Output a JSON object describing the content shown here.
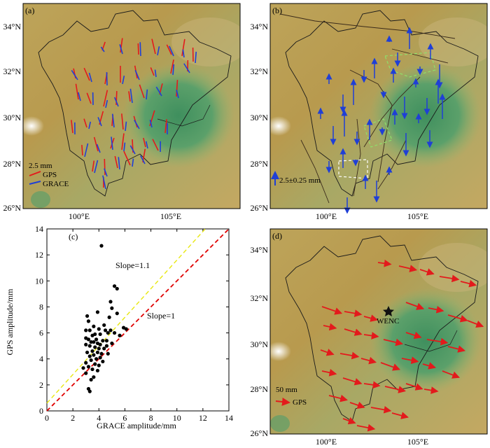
{
  "panels": {
    "a": {
      "label": "(a)",
      "x_ticks": [
        "100°E",
        "105°E"
      ],
      "y_ticks": [
        "34°N",
        "32°N",
        "30°N",
        "28°N",
        "26°N"
      ],
      "legend": {
        "scale": "2.5 mm",
        "gps": "GPS",
        "grace": "GRACE"
      }
    },
    "b": {
      "label": "(b)",
      "x_ticks": [
        "100°E",
        "105°E"
      ],
      "y_ticks": [
        "34°N",
        "32°N",
        "30°N",
        "28°N",
        "26°N"
      ],
      "legend": {
        "scale": "2.5±0.25 mm"
      }
    },
    "c": {
      "label": "(c)",
      "annotations": {
        "slope1": "Slope=1.1",
        "slope2": "Slope=1"
      }
    },
    "d": {
      "label": "(d)",
      "x_ticks": [
        "100°E",
        "105°E"
      ],
      "y_ticks": [
        "34°N",
        "32°N",
        "30°N",
        "28°N",
        "26°N"
      ],
      "station": "WENC",
      "legend": {
        "scale": "50 mm",
        "gps": "GPS"
      }
    }
  },
  "colors": {
    "gps": "#e31a1c",
    "grace": "#1f3fd6",
    "fit_line": "#e8e810",
    "unit_line": "#e00000",
    "border": "#1a1a1a"
  },
  "chart_data": {
    "type": "scatter",
    "title": "",
    "xlabel": "GRACE amplitude/mm",
    "ylabel": "GPS amplitude/mm",
    "xlim": [
      0,
      14
    ],
    "ylim": [
      0,
      14
    ],
    "x_ticks": [
      0,
      2,
      4,
      6,
      8,
      10,
      12,
      14
    ],
    "y_ticks": [
      0,
      2,
      4,
      6,
      8,
      10,
      12,
      14
    ],
    "lines": [
      {
        "name": "Slope=1.1",
        "slope": 1.1,
        "intercept": 0.6,
        "style": "dashed",
        "color": "#e8e810"
      },
      {
        "name": "Slope=1",
        "slope": 1.0,
        "intercept": 0.0,
        "style": "dashed",
        "color": "#e00000"
      }
    ],
    "points": [
      [
        4.2,
        12.7
      ],
      [
        5.2,
        9.6
      ],
      [
        5.4,
        9.4
      ],
      [
        4.9,
        8.4
      ],
      [
        5.0,
        7.9
      ],
      [
        3.1,
        7.3
      ],
      [
        4.8,
        7.2
      ],
      [
        3.9,
        7.6
      ],
      [
        5.4,
        7.5
      ],
      [
        3.2,
        6.9
      ],
      [
        4.4,
        6.6
      ],
      [
        5.9,
        6.4
      ],
      [
        6.1,
        6.3
      ],
      [
        3.6,
        6.5
      ],
      [
        4.0,
        6.3
      ],
      [
        4.5,
        6.2
      ],
      [
        4.9,
        6.2
      ],
      [
        3.0,
        6.2
      ],
      [
        3.3,
        6.2
      ],
      [
        5.2,
        6.0
      ],
      [
        4.7,
        6.0
      ],
      [
        4.1,
        5.9
      ],
      [
        3.7,
        5.9
      ],
      [
        3.5,
        5.8
      ],
      [
        5.6,
        5.8
      ],
      [
        3.0,
        5.6
      ],
      [
        3.2,
        5.5
      ],
      [
        3.8,
        5.5
      ],
      [
        4.3,
        5.4
      ],
      [
        4.6,
        5.4
      ],
      [
        3.4,
        5.3
      ],
      [
        3.6,
        5.3
      ],
      [
        3.9,
        5.2
      ],
      [
        4.1,
        5.1
      ],
      [
        3.0,
        5.1
      ],
      [
        5.0,
        5.2
      ],
      [
        4.6,
        5.0
      ],
      [
        3.3,
        5.0
      ],
      [
        3.7,
        4.9
      ],
      [
        4.0,
        4.8
      ],
      [
        4.4,
        4.8
      ],
      [
        3.5,
        4.6
      ],
      [
        3.1,
        4.5
      ],
      [
        3.9,
        4.5
      ],
      [
        4.2,
        4.4
      ],
      [
        3.6,
        4.3
      ],
      [
        4.7,
        4.4
      ],
      [
        3.3,
        4.2
      ],
      [
        4.1,
        4.1
      ],
      [
        3.8,
        4.0
      ],
      [
        3.4,
        3.9
      ],
      [
        4.3,
        3.8
      ],
      [
        3.0,
        3.7
      ],
      [
        3.7,
        3.6
      ],
      [
        4.0,
        3.5
      ],
      [
        3.2,
        3.4
      ],
      [
        3.5,
        3.2
      ],
      [
        2.8,
        3.3
      ],
      [
        3.9,
        3.1
      ],
      [
        3.6,
        2.6
      ],
      [
        3.4,
        2.4
      ],
      [
        3.2,
        1.7
      ],
      [
        3.3,
        1.5
      ],
      [
        3.0,
        2.9
      ]
    ]
  }
}
